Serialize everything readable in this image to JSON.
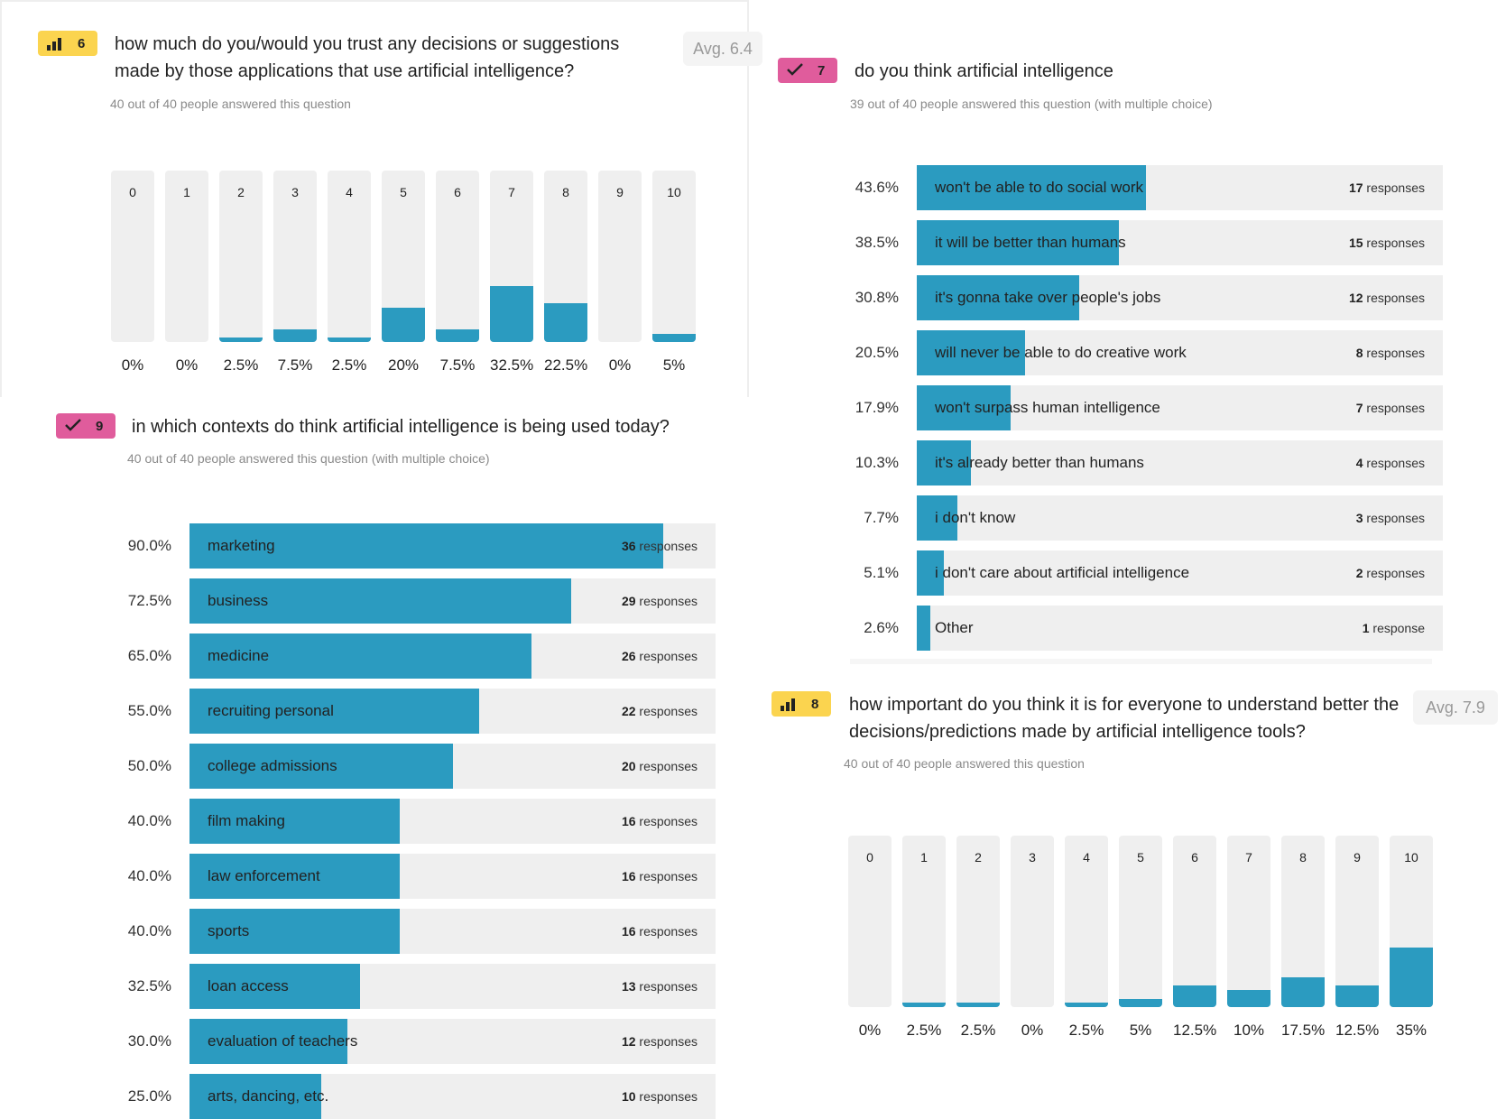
{
  "q6": {
    "number": "6",
    "title": "how much do you/would you trust any decisions or suggestions made by those applications that use artificial intelligence?",
    "avg": "Avg. 6.4",
    "answered": "40 out of 40 people answered this question",
    "badge_color": "#fbd44f"
  },
  "q7": {
    "number": "7",
    "title": "do you think artificial intelligence",
    "answered": "39 out of 40 people answered this question (with multiple choice)",
    "badge_color": "#e05c9c"
  },
  "q8": {
    "number": "8",
    "title": "how important do you think it is for everyone to understand better the decisions/predictions made by artificial intelligence tools?",
    "avg": "Avg. 7.9",
    "answered": "40 out of 40 people answered this question",
    "badge_color": "#fbd44f"
  },
  "q9": {
    "number": "9",
    "title": "in which contexts do think artificial intelligence is being used today?",
    "answered": "40 out of 40 people answered this question (with multiple choice)",
    "badge_color": "#e05c9c"
  },
  "colors": {
    "bar": "#2b9bc0",
    "track": "#efefef"
  },
  "chart_data": [
    {
      "id": "q6",
      "type": "bar",
      "categories": [
        "0",
        "1",
        "2",
        "3",
        "4",
        "5",
        "6",
        "7",
        "8",
        "9",
        "10"
      ],
      "values": [
        0,
        0,
        2.5,
        7.5,
        2.5,
        20,
        7.5,
        32.5,
        22.5,
        0,
        5
      ],
      "value_labels": [
        "0%",
        "0%",
        "2.5%",
        "7.5%",
        "2.5%",
        "20%",
        "7.5%",
        "32.5%",
        "22.5%",
        "0%",
        "5%"
      ],
      "ylim": [
        0,
        100
      ]
    },
    {
      "id": "q7",
      "type": "bar",
      "orientation": "horizontal",
      "categories": [
        "won't be able to do social work",
        "it will be better than humans",
        "it's gonna take over people's jobs",
        "will never be able to do creative work",
        "won't surpass human intelligence",
        "it's already better than humans",
        "i don't know",
        "i don't care about artificial intelligence",
        "Other"
      ],
      "values": [
        43.6,
        38.5,
        30.8,
        20.5,
        17.9,
        10.3,
        7.7,
        5.1,
        2.6
      ],
      "value_labels": [
        "43.6%",
        "38.5%",
        "30.8%",
        "20.5%",
        "17.9%",
        "10.3%",
        "7.7%",
        "5.1%",
        "2.6%"
      ],
      "responses": [
        "17",
        "15",
        "12",
        "8",
        "7",
        "4",
        "3",
        "2",
        "1"
      ],
      "response_words": [
        "responses",
        "responses",
        "responses",
        "responses",
        "responses",
        "responses",
        "responses",
        "responses",
        "response"
      ],
      "xlim": [
        0,
        100
      ]
    },
    {
      "id": "q8",
      "type": "bar",
      "categories": [
        "0",
        "1",
        "2",
        "3",
        "4",
        "5",
        "6",
        "7",
        "8",
        "9",
        "10"
      ],
      "values": [
        0,
        2.5,
        2.5,
        0,
        2.5,
        5,
        12.5,
        10,
        17.5,
        12.5,
        35
      ],
      "value_labels": [
        "0%",
        "2.5%",
        "2.5%",
        "0%",
        "2.5%",
        "5%",
        "12.5%",
        "10%",
        "17.5%",
        "12.5%",
        "35%"
      ],
      "ylim": [
        0,
        100
      ]
    },
    {
      "id": "q9",
      "type": "bar",
      "orientation": "horizontal",
      "categories": [
        "marketing",
        "business",
        "medicine",
        "recruiting personal",
        "college admissions",
        "film making",
        "law enforcement",
        "sports",
        "loan access",
        "evaluation of teachers",
        "arts, dancing, etc."
      ],
      "values": [
        90.0,
        72.5,
        65.0,
        55.0,
        50.0,
        40.0,
        40.0,
        40.0,
        32.5,
        30.0,
        25.0
      ],
      "value_labels": [
        "90.0%",
        "72.5%",
        "65.0%",
        "55.0%",
        "50.0%",
        "40.0%",
        "40.0%",
        "40.0%",
        "32.5%",
        "30.0%",
        "25.0%"
      ],
      "responses": [
        "36",
        "29",
        "26",
        "22",
        "20",
        "16",
        "16",
        "16",
        "13",
        "12",
        "10"
      ],
      "response_words": [
        "responses",
        "responses",
        "responses",
        "responses",
        "responses",
        "responses",
        "responses",
        "responses",
        "responses",
        "responses",
        "responses"
      ],
      "xlim": [
        0,
        100
      ]
    }
  ]
}
